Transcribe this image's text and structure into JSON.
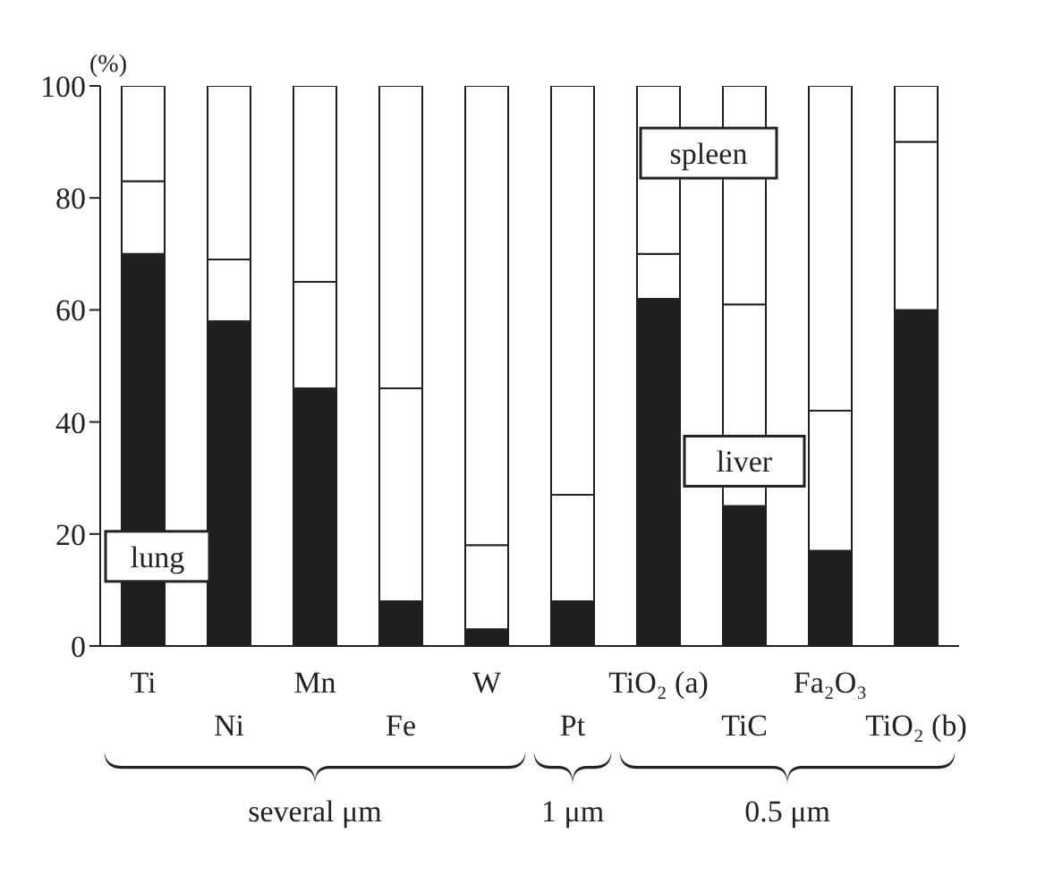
{
  "chart_data": {
    "type": "bar",
    "stacked": true,
    "ylabel": "(%)",
    "categories": [
      "Ti",
      "Ni",
      "Mn",
      "Fe",
      "W",
      "Pt",
      "TiO₂ (a)",
      "TiC",
      "Fa₂O₃",
      "TiO₂ (b)"
    ],
    "series": [
      {
        "name": "lung",
        "color": "#1e1e1e",
        "values": [
          70,
          58,
          46,
          8,
          3,
          8,
          62,
          25,
          17,
          60
        ]
      },
      {
        "name": "liver",
        "color": "#ffffff",
        "values": [
          13,
          11,
          19,
          38,
          15,
          19,
          8,
          36,
          25,
          30
        ]
      },
      {
        "name": "spleen",
        "color": "#ffffff",
        "values": [
          17,
          31,
          35,
          54,
          82,
          73,
          30,
          39,
          58,
          10
        ]
      }
    ],
    "ylim": [
      0,
      100
    ],
    "yticks": [
      0,
      20,
      40,
      60,
      80,
      100
    ],
    "grid": false,
    "legend": false,
    "annotations": [
      "several μm",
      "1 μm",
      "0.5 μm"
    ]
  }
}
